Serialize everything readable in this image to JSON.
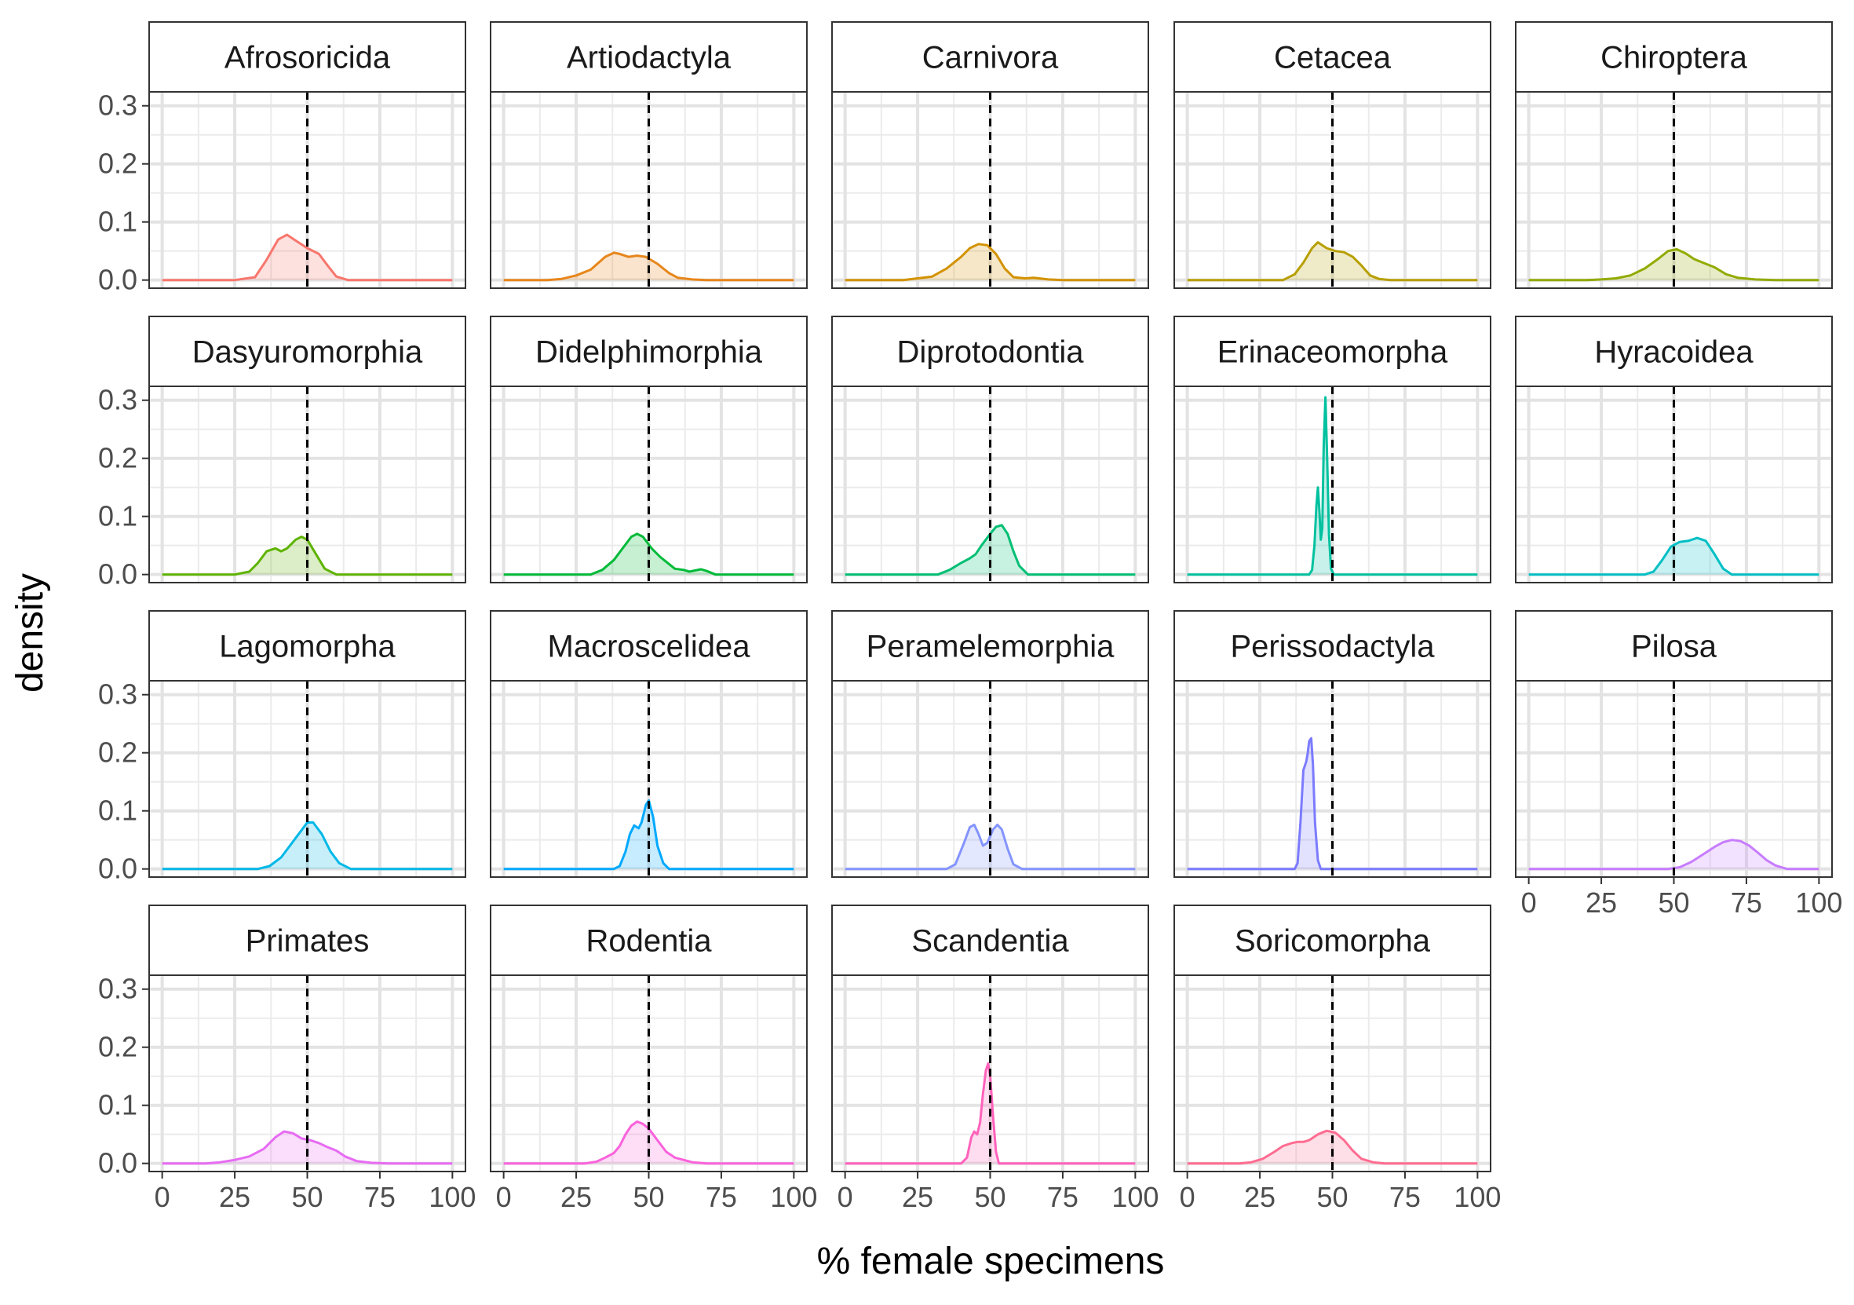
{
  "chart_data": {
    "type": "area",
    "facet_layout": "wrap 5 columns",
    "xlabel": "% female specimens",
    "ylabel": "density",
    "xlim": [
      0,
      100
    ],
    "ylim": [
      0,
      0.31
    ],
    "x_ticks": [
      "0",
      "25",
      "50",
      "75",
      "100"
    ],
    "y_ticks": [
      "0.0",
      "0.1",
      "0.2",
      "0.3"
    ],
    "reference_line_x": 50,
    "grid": true,
    "panels": [
      {
        "name": "Afrosoricida",
        "color": "#F8766D",
        "curve": [
          [
            0,
            0
          ],
          [
            25,
            0
          ],
          [
            32,
            0.005
          ],
          [
            36,
            0.035
          ],
          [
            40,
            0.07
          ],
          [
            43,
            0.078
          ],
          [
            46,
            0.068
          ],
          [
            50,
            0.055
          ],
          [
            54,
            0.045
          ],
          [
            57,
            0.025
          ],
          [
            60,
            0.006
          ],
          [
            64,
            0
          ],
          [
            100,
            0
          ]
        ]
      },
      {
        "name": "Artiodactyla",
        "color": "#E7861B",
        "curve": [
          [
            0,
            0
          ],
          [
            15,
            0
          ],
          [
            20,
            0.002
          ],
          [
            25,
            0.008
          ],
          [
            30,
            0.018
          ],
          [
            35,
            0.04
          ],
          [
            38,
            0.047
          ],
          [
            40,
            0.045
          ],
          [
            43,
            0.04
          ],
          [
            46,
            0.042
          ],
          [
            49,
            0.04
          ],
          [
            53,
            0.028
          ],
          [
            57,
            0.012
          ],
          [
            60,
            0.004
          ],
          [
            65,
            0.001
          ],
          [
            70,
            0
          ],
          [
            100,
            0
          ]
        ]
      },
      {
        "name": "Carnivora",
        "color": "#D39200",
        "curve": [
          [
            0,
            0
          ],
          [
            20,
            0
          ],
          [
            25,
            0.003
          ],
          [
            30,
            0.006
          ],
          [
            35,
            0.02
          ],
          [
            40,
            0.04
          ],
          [
            43,
            0.055
          ],
          [
            46,
            0.062
          ],
          [
            49,
            0.06
          ],
          [
            52,
            0.045
          ],
          [
            55,
            0.02
          ],
          [
            58,
            0.005
          ],
          [
            62,
            0.003
          ],
          [
            65,
            0.004
          ],
          [
            70,
            0.001
          ],
          [
            75,
            0
          ],
          [
            100,
            0
          ]
        ]
      },
      {
        "name": "Cetacea",
        "color": "#B79F00",
        "curve": [
          [
            0,
            0
          ],
          [
            33,
            0
          ],
          [
            37,
            0.01
          ],
          [
            40,
            0.03
          ],
          [
            43,
            0.055
          ],
          [
            45,
            0.065
          ],
          [
            48,
            0.055
          ],
          [
            51,
            0.05
          ],
          [
            54,
            0.048
          ],
          [
            57,
            0.04
          ],
          [
            60,
            0.025
          ],
          [
            63,
            0.008
          ],
          [
            66,
            0.002
          ],
          [
            70,
            0
          ],
          [
            100,
            0
          ]
        ]
      },
      {
        "name": "Chiroptera",
        "color": "#93AA00",
        "curve": [
          [
            0,
            0
          ],
          [
            20,
            0
          ],
          [
            25,
            0.001
          ],
          [
            30,
            0.003
          ],
          [
            35,
            0.008
          ],
          [
            40,
            0.02
          ],
          [
            45,
            0.038
          ],
          [
            48,
            0.05
          ],
          [
            51,
            0.053
          ],
          [
            54,
            0.046
          ],
          [
            57,
            0.036
          ],
          [
            60,
            0.03
          ],
          [
            64,
            0.022
          ],
          [
            68,
            0.01
          ],
          [
            72,
            0.004
          ],
          [
            78,
            0.001
          ],
          [
            85,
            0
          ],
          [
            100,
            0
          ]
        ]
      },
      {
        "name": "Dasyuromorphia",
        "color": "#5EB300",
        "curve": [
          [
            0,
            0
          ],
          [
            25,
            0
          ],
          [
            30,
            0.005
          ],
          [
            33,
            0.02
          ],
          [
            36,
            0.04
          ],
          [
            39,
            0.045
          ],
          [
            41,
            0.04
          ],
          [
            43,
            0.045
          ],
          [
            46,
            0.06
          ],
          [
            48,
            0.065
          ],
          [
            50,
            0.06
          ],
          [
            53,
            0.035
          ],
          [
            56,
            0.01
          ],
          [
            60,
            0
          ],
          [
            100,
            0
          ]
        ]
      },
      {
        "name": "Didelphimorphia",
        "color": "#00BA38",
        "curve": [
          [
            0,
            0
          ],
          [
            30,
            0
          ],
          [
            34,
            0.008
          ],
          [
            38,
            0.025
          ],
          [
            41,
            0.045
          ],
          [
            44,
            0.065
          ],
          [
            46,
            0.07
          ],
          [
            48,
            0.065
          ],
          [
            51,
            0.045
          ],
          [
            54,
            0.03
          ],
          [
            56,
            0.022
          ],
          [
            59,
            0.01
          ],
          [
            62,
            0.008
          ],
          [
            64,
            0.005
          ],
          [
            66,
            0.007
          ],
          [
            68,
            0.009
          ],
          [
            70,
            0.006
          ],
          [
            73,
            0
          ],
          [
            100,
            0
          ]
        ]
      },
      {
        "name": "Diprotodontia",
        "color": "#00BF74",
        "curve": [
          [
            0,
            0
          ],
          [
            32,
            0
          ],
          [
            36,
            0.008
          ],
          [
            40,
            0.02
          ],
          [
            43,
            0.028
          ],
          [
            45,
            0.035
          ],
          [
            47,
            0.05
          ],
          [
            50,
            0.07
          ],
          [
            52,
            0.082
          ],
          [
            54,
            0.085
          ],
          [
            56,
            0.07
          ],
          [
            58,
            0.04
          ],
          [
            60,
            0.015
          ],
          [
            63,
            0
          ],
          [
            100,
            0
          ]
        ]
      },
      {
        "name": "Erinaceomorpha",
        "color": "#00C19F",
        "curve": [
          [
            0,
            0
          ],
          [
            42,
            0
          ],
          [
            43,
            0.008
          ],
          [
            43.8,
            0.05
          ],
          [
            44.5,
            0.12
          ],
          [
            45,
            0.15
          ],
          [
            45.5,
            0.11
          ],
          [
            46,
            0.06
          ],
          [
            46.5,
            0.08
          ],
          [
            47,
            0.22
          ],
          [
            47.6,
            0.305
          ],
          [
            48.2,
            0.2
          ],
          [
            48.8,
            0.07
          ],
          [
            49.5,
            0.01
          ],
          [
            50.5,
            0
          ],
          [
            100,
            0
          ]
        ]
      },
      {
        "name": "Hyracoidea",
        "color": "#00BFC4",
        "curve": [
          [
            0,
            0
          ],
          [
            40,
            0
          ],
          [
            43,
            0.005
          ],
          [
            46,
            0.025
          ],
          [
            49,
            0.048
          ],
          [
            52,
            0.056
          ],
          [
            55,
            0.058
          ],
          [
            58,
            0.063
          ],
          [
            61,
            0.058
          ],
          [
            64,
            0.035
          ],
          [
            67,
            0.01
          ],
          [
            70,
            0
          ],
          [
            100,
            0
          ]
        ]
      },
      {
        "name": "Lagomorpha",
        "color": "#00B8E7",
        "curve": [
          [
            0,
            0
          ],
          [
            33,
            0
          ],
          [
            37,
            0.005
          ],
          [
            41,
            0.02
          ],
          [
            44,
            0.04
          ],
          [
            47,
            0.06
          ],
          [
            50,
            0.08
          ],
          [
            52,
            0.08
          ],
          [
            55,
            0.06
          ],
          [
            58,
            0.03
          ],
          [
            61,
            0.01
          ],
          [
            65,
            0
          ],
          [
            100,
            0
          ]
        ]
      },
      {
        "name": "Macroscelidea",
        "color": "#00A9FF",
        "curve": [
          [
            0,
            0
          ],
          [
            38,
            0
          ],
          [
            40,
            0.005
          ],
          [
            42,
            0.03
          ],
          [
            43.5,
            0.06
          ],
          [
            45,
            0.075
          ],
          [
            46.5,
            0.07
          ],
          [
            47.5,
            0.08
          ],
          [
            49,
            0.11
          ],
          [
            50,
            0.118
          ],
          [
            51.5,
            0.09
          ],
          [
            53,
            0.04
          ],
          [
            55,
            0.01
          ],
          [
            57,
            0
          ],
          [
            100,
            0
          ]
        ]
      },
      {
        "name": "Peramelemorphia",
        "color": "#8494FF",
        "curve": [
          [
            0,
            0
          ],
          [
            35,
            0
          ],
          [
            38,
            0.008
          ],
          [
            41,
            0.045
          ],
          [
            43,
            0.072
          ],
          [
            44.5,
            0.076
          ],
          [
            46,
            0.06
          ],
          [
            47.5,
            0.04
          ],
          [
            49,
            0.045
          ],
          [
            51,
            0.068
          ],
          [
            52.5,
            0.076
          ],
          [
            54,
            0.068
          ],
          [
            56,
            0.035
          ],
          [
            58,
            0.008
          ],
          [
            61,
            0
          ],
          [
            100,
            0
          ]
        ]
      },
      {
        "name": "Perissodactyla",
        "color": "#7B7BFF",
        "curve": [
          [
            0,
            0
          ],
          [
            37,
            0
          ],
          [
            38,
            0.01
          ],
          [
            39,
            0.08
          ],
          [
            40,
            0.17
          ],
          [
            41,
            0.185
          ],
          [
            41.5,
            0.2
          ],
          [
            42,
            0.22
          ],
          [
            42.7,
            0.225
          ],
          [
            43.3,
            0.18
          ],
          [
            44,
            0.08
          ],
          [
            45,
            0.015
          ],
          [
            46,
            0
          ],
          [
            100,
            0
          ]
        ]
      },
      {
        "name": "Pilosa",
        "color": "#C77CFF",
        "curve": [
          [
            0,
            0
          ],
          [
            48,
            0
          ],
          [
            52,
            0.003
          ],
          [
            56,
            0.012
          ],
          [
            60,
            0.025
          ],
          [
            64,
            0.038
          ],
          [
            67,
            0.046
          ],
          [
            70,
            0.05
          ],
          [
            73,
            0.048
          ],
          [
            76,
            0.04
          ],
          [
            79,
            0.028
          ],
          [
            82,
            0.015
          ],
          [
            85,
            0.006
          ],
          [
            89,
            0
          ],
          [
            100,
            0
          ]
        ]
      },
      {
        "name": "Primates",
        "color": "#E76BF3",
        "curve": [
          [
            0,
            0
          ],
          [
            15,
            0
          ],
          [
            20,
            0.002
          ],
          [
            25,
            0.006
          ],
          [
            30,
            0.012
          ],
          [
            35,
            0.025
          ],
          [
            39,
            0.045
          ],
          [
            42,
            0.055
          ],
          [
            45,
            0.052
          ],
          [
            48,
            0.043
          ],
          [
            51,
            0.04
          ],
          [
            54,
            0.035
          ],
          [
            57,
            0.028
          ],
          [
            60,
            0.022
          ],
          [
            63,
            0.012
          ],
          [
            67,
            0.004
          ],
          [
            72,
            0.001
          ],
          [
            78,
            0
          ],
          [
            100,
            0
          ]
        ]
      },
      {
        "name": "Rodentia",
        "color": "#FA62DB",
        "curve": [
          [
            0,
            0
          ],
          [
            28,
            0
          ],
          [
            32,
            0.003
          ],
          [
            35,
            0.01
          ],
          [
            38,
            0.018
          ],
          [
            40,
            0.03
          ],
          [
            42,
            0.05
          ],
          [
            44,
            0.065
          ],
          [
            46,
            0.072
          ],
          [
            48,
            0.068
          ],
          [
            50,
            0.06
          ],
          [
            53,
            0.04
          ],
          [
            56,
            0.02
          ],
          [
            59,
            0.01
          ],
          [
            62,
            0.006
          ],
          [
            65,
            0.002
          ],
          [
            70,
            0
          ],
          [
            100,
            0
          ]
        ]
      },
      {
        "name": "Scandentia",
        "color": "#FF62BC",
        "curve": [
          [
            0,
            0
          ],
          [
            40,
            0
          ],
          [
            42,
            0.01
          ],
          [
            43.5,
            0.045
          ],
          [
            44.5,
            0.055
          ],
          [
            45.5,
            0.05
          ],
          [
            46.5,
            0.07
          ],
          [
            47.5,
            0.12
          ],
          [
            48.5,
            0.16
          ],
          [
            49.3,
            0.172
          ],
          [
            50,
            0.15
          ],
          [
            51,
            0.08
          ],
          [
            52,
            0.02
          ],
          [
            53,
            0
          ],
          [
            100,
            0
          ]
        ]
      },
      {
        "name": "Soricomorpha",
        "color": "#FF6C91",
        "curve": [
          [
            0,
            0
          ],
          [
            18,
            0
          ],
          [
            22,
            0.002
          ],
          [
            26,
            0.008
          ],
          [
            30,
            0.02
          ],
          [
            33,
            0.03
          ],
          [
            36,
            0.035
          ],
          [
            38,
            0.037
          ],
          [
            40,
            0.037
          ],
          [
            42,
            0.04
          ],
          [
            45,
            0.05
          ],
          [
            48,
            0.056
          ],
          [
            51,
            0.053
          ],
          [
            54,
            0.04
          ],
          [
            57,
            0.022
          ],
          [
            60,
            0.008
          ],
          [
            64,
            0.002
          ],
          [
            68,
            0
          ],
          [
            100,
            0
          ]
        ]
      }
    ]
  }
}
